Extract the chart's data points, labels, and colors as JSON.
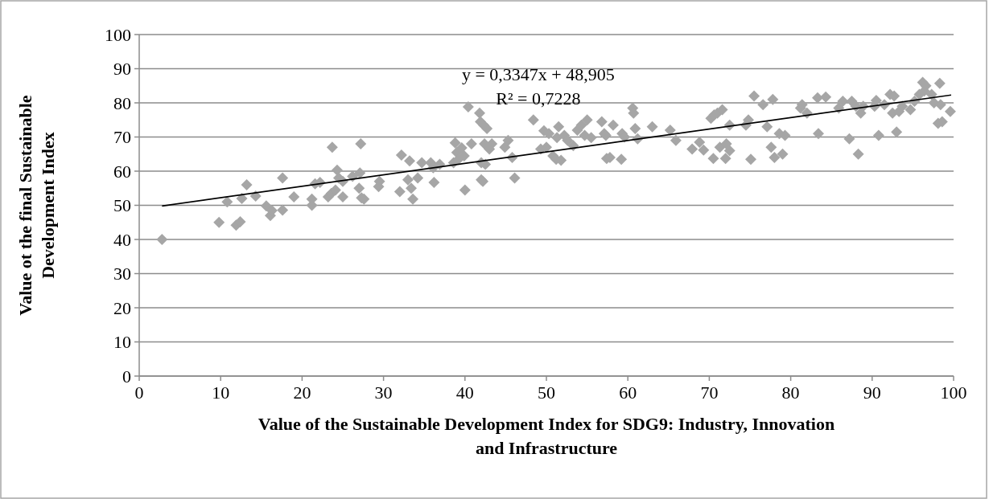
{
  "chart_data": {
    "type": "scatter",
    "xlabel": "Value of the Sustainable Development Index for SDG9: Industry, Innovation and Infrastructure",
    "ylabel": "Value ot the final Sustainable Development Index",
    "xlim": [
      0,
      100
    ],
    "ylim": [
      0,
      100
    ],
    "xticks": [
      0,
      10,
      20,
      30,
      40,
      50,
      60,
      70,
      80,
      90,
      100
    ],
    "yticks": [
      0,
      10,
      20,
      30,
      40,
      50,
      60,
      70,
      80,
      90,
      100
    ],
    "grid": "y",
    "marker": "diamond",
    "annotations": [
      "y = 0,3347x + 48,905",
      "R² = 0,7228"
    ],
    "series": [
      {
        "color": "#a6a6a6",
        "x": [
          2.8,
          9.8,
          10.8,
          11.9,
          12.4,
          12.6,
          13.2,
          14.3,
          15.6,
          16.1,
          16.3,
          17.6,
          17.6,
          19,
          21.2,
          21.2,
          21.6,
          22.2,
          23.2,
          23.6,
          23.7,
          24.1,
          24.3,
          24.5,
          25,
          25,
          26.2,
          27,
          27.1,
          27.2,
          27.3,
          27.6,
          29.4,
          29.5,
          32,
          32.2,
          33,
          33.2,
          33.4,
          33.6,
          34.2,
          34.7,
          35.8,
          36.1,
          36.2,
          36.9,
          38.6,
          38.8,
          39,
          39.2,
          39.6,
          39.9,
          40,
          40.4,
          40.8,
          41.8,
          41.9,
          42,
          42,
          42.2,
          42.3,
          42.4,
          42.5,
          42.7,
          43,
          43.3,
          44.9,
          45.3,
          45.8,
          46.1,
          48.4,
          49.3,
          49.7,
          50,
          50.3,
          50.8,
          51.2,
          51.3,
          51.5,
          51.8,
          52.2,
          52.6,
          53.3,
          53.8,
          54.3,
          54.7,
          55,
          55.5,
          56.8,
          57.1,
          57.3,
          57.4,
          57.8,
          58.2,
          59.2,
          59.3,
          59.6,
          60.6,
          60.7,
          60.9,
          61.2,
          63,
          65.2,
          65.9,
          67.9,
          68.8,
          69.3,
          70.2,
          70.5,
          70.6,
          71,
          71.3,
          71.6,
          72,
          72.1,
          72.5,
          72.5,
          74.5,
          74.8,
          75.1,
          75.5,
          76.6,
          77.1,
          77.6,
          77.8,
          78,
          78.6,
          79,
          79.3,
          81.2,
          81.4,
          82,
          83.3,
          83.4,
          84.3,
          85.9,
          86.4,
          87.2,
          87.5,
          88,
          88.3,
          88.6,
          88.9,
          90.3,
          90.5,
          90.8,
          91.5,
          92.2,
          92.5,
          92.7,
          93,
          93.3,
          93.7,
          94.7,
          95.2,
          95.8,
          96.2,
          96.4,
          96.6,
          97.3,
          97.6,
          98.1,
          98.3,
          98.4,
          98.6,
          99.6
        ],
        "values": [
          40,
          45,
          51,
          44.2,
          45.2,
          52,
          56,
          52.7,
          49.8,
          47,
          48.5,
          58,
          48.6,
          52.5,
          50,
          51.8,
          56.3,
          56.7,
          52.5,
          53.5,
          67,
          54.5,
          60.3,
          58,
          52.5,
          57,
          58.5,
          55,
          59.5,
          68,
          52.2,
          51.8,
          55.5,
          57,
          54,
          64.7,
          57.5,
          63,
          55,
          51.8,
          58,
          62.5,
          62.5,
          61,
          56.7,
          62,
          62.5,
          68.3,
          65.5,
          63.5,
          66.8,
          64.5,
          54.5,
          78.8,
          68,
          77,
          74.5,
          57.5,
          62.5,
          57,
          73.5,
          68,
          62,
          72.5,
          66.5,
          68,
          67,
          69,
          64,
          58,
          75,
          66.5,
          71.8,
          67,
          71,
          64.5,
          63.5,
          69.8,
          73,
          63.2,
          70.5,
          69,
          67.5,
          72,
          73.5,
          70.5,
          75,
          69.8,
          74.5,
          71,
          70.5,
          63.7,
          64,
          73.5,
          63.5,
          71,
          70,
          78.5,
          77,
          72.5,
          69.5,
          73,
          72,
          69,
          66.5,
          68.5,
          66.2,
          75.5,
          63.7,
          76.5,
          77,
          67,
          78,
          63.7,
          68,
          73.5,
          66,
          73.5,
          75,
          63.5,
          82,
          79.5,
          73,
          67,
          81,
          64,
          71,
          65,
          70.5,
          78.5,
          79.5,
          77,
          81.5,
          71,
          81.7,
          78.5,
          80.5,
          69.5,
          80.5,
          79,
          65,
          77,
          79,
          79,
          80.7,
          70.5,
          79.5,
          82.5,
          77,
          82,
          71.5,
          77.5,
          79,
          78,
          80.5,
          82.5,
          86,
          83.5,
          85,
          82.5,
          80,
          74,
          85.7,
          79.5,
          74.5,
          77.5
        ]
      },
      {
        "type": "line",
        "color": "#000000",
        "marker": "none",
        "x": [
          2.8,
          99.7
        ],
        "values": [
          49.8,
          82.3
        ]
      }
    ]
  }
}
